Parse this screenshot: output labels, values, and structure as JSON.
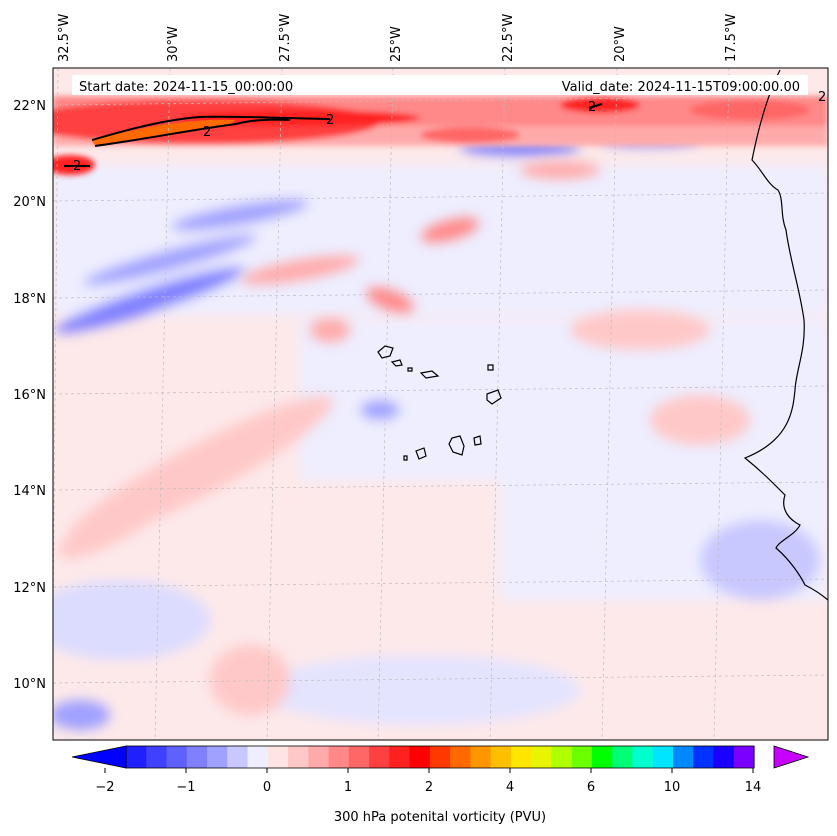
{
  "header": {
    "start_date": "Start date: 2024-11-15_00:00:00",
    "valid_date": "Valid_date: 2024-11-15T09:00:00.00"
  },
  "map": {
    "longitude_labels": [
      "32.5°W",
      "30°W",
      "27.5°W",
      "25°W",
      "22.5°W",
      "20°W",
      "17.5°W"
    ],
    "latitude_labels": [
      "22°N",
      "20°N",
      "18°N",
      "16°N",
      "14°N",
      "12°N",
      "10°N"
    ],
    "contour_level_label": "2"
  },
  "colorbar": {
    "label": "300 hPa potenital vorticity (PVU)",
    "tick_labels": [
      "−2",
      "−1",
      "0",
      "1",
      "2",
      "4",
      "6",
      "10",
      "14"
    ],
    "colors": [
      "#0000ff",
      "#2020ff",
      "#4040ff",
      "#6060ff",
      "#8080ff",
      "#a0a0ff",
      "#c8c8ff",
      "#eeeeff",
      "#ffe4e4",
      "#ffc8c8",
      "#ffaaaa",
      "#ff8888",
      "#ff6666",
      "#ff4040",
      "#ff2020",
      "#ff0000",
      "#ff3800",
      "#ff6a00",
      "#ff9500",
      "#ffbf00",
      "#ffe600",
      "#e8f500",
      "#b0ff00",
      "#6cff00",
      "#00ff00",
      "#00ff77",
      "#00ffcc",
      "#00e5ff",
      "#0088ff",
      "#0033ff",
      "#1a00ff",
      "#7a00ff",
      "#c800ff"
    ]
  }
}
